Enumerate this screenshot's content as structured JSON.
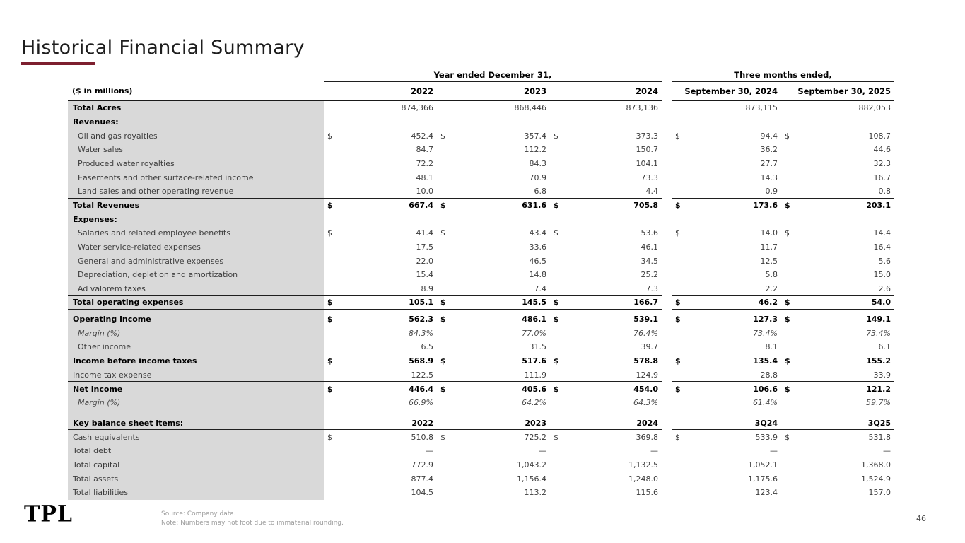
{
  "slide": {
    "title": "Historical Financial Summary",
    "accent_color": "#7d1f2f",
    "label_band_color": "#d9d9d9",
    "logo_text": "TPL",
    "page_number": "46",
    "footnotes": [
      "Source: Company data.",
      "Note: Numbers may not foot due to immaterial rounding."
    ]
  },
  "table": {
    "units_label": "($ in millions)",
    "group_headers": [
      "Year ended December 31,",
      "Three months ended,"
    ],
    "columns": [
      "2022",
      "2023",
      "2024",
      "September 30, 2024",
      "September 30, 2025"
    ],
    "rows": [
      {
        "name": "row-total-acres",
        "label": "Total Acres",
        "style": "lb",
        "values": [
          "874,366",
          "868,446",
          "873,136",
          "873,115",
          "882,053"
        ]
      },
      {
        "name": "row-revenues-header",
        "label": "Revenues:",
        "style": "lb"
      },
      {
        "name": "row-oil-gas-royalties",
        "label": "Oil and gas royalties",
        "style": "ind",
        "dollar": true,
        "values": [
          "452.4",
          "357.4",
          "373.3",
          "94.4",
          "108.7"
        ]
      },
      {
        "name": "row-water-sales",
        "label": "Water sales",
        "style": "ind",
        "values": [
          "84.7",
          "112.2",
          "150.7",
          "36.2",
          "44.6"
        ]
      },
      {
        "name": "row-produced-water-royalties",
        "label": "Produced water royalties",
        "style": "ind",
        "values": [
          "72.2",
          "84.3",
          "104.1",
          "27.7",
          "32.3"
        ]
      },
      {
        "name": "row-easements-income",
        "label": "Easements and other surface-related income",
        "style": "ind",
        "values": [
          "48.1",
          "70.9",
          "73.3",
          "14.3",
          "16.7"
        ]
      },
      {
        "name": "row-land-sales",
        "label": "Land sales and other operating revenue",
        "style": "ind",
        "values": [
          "10.0",
          "6.8",
          "4.4",
          "0.9",
          "0.8"
        ],
        "border_bottom": true
      },
      {
        "name": "row-total-revenues",
        "label": "Total Revenues",
        "style": "lb vb",
        "dollar": true,
        "values": [
          "667.4",
          "631.6",
          "705.8",
          "173.6",
          "203.1"
        ]
      },
      {
        "name": "row-expenses-header",
        "label": "Expenses:",
        "style": "lb"
      },
      {
        "name": "row-salaries-benefits",
        "label": "Salaries and related employee benefits",
        "style": "ind",
        "dollar": true,
        "values": [
          "41.4",
          "43.4",
          "53.6",
          "14.0",
          "14.4"
        ]
      },
      {
        "name": "row-water-service-expenses",
        "label": "Water service-related expenses",
        "style": "ind",
        "values": [
          "17.5",
          "33.6",
          "46.1",
          "11.7",
          "16.4"
        ]
      },
      {
        "name": "row-general-admin-expenses",
        "label": "General and administrative expenses",
        "style": "ind",
        "values": [
          "22.0",
          "46.5",
          "34.5",
          "12.5",
          "5.6"
        ]
      },
      {
        "name": "row-depreciation-depletion-amortization",
        "label": "Depreciation, depletion and amortization",
        "style": "ind",
        "values": [
          "15.4",
          "14.8",
          "25.2",
          "5.8",
          "15.0"
        ]
      },
      {
        "name": "row-ad-valorem-taxes",
        "label": "Ad valorem taxes",
        "style": "ind",
        "values": [
          "8.9",
          "7.4",
          "7.3",
          "2.2",
          "2.6"
        ],
        "border_bottom": true
      },
      {
        "name": "row-total-operating-expenses",
        "label": "Total operating expenses",
        "style": "lb vb",
        "dollar": true,
        "values": [
          "105.1",
          "145.5",
          "166.7",
          "46.2",
          "54.0"
        ],
        "border_bottom": true,
        "space_after": 4
      },
      {
        "name": "row-operating-income",
        "label": "Operating income",
        "style": "lb vb",
        "dollar": true,
        "values": [
          "562.3",
          "486.1",
          "539.1",
          "127.3",
          "149.1"
        ]
      },
      {
        "name": "row-operating-margin",
        "label": "Margin (%)",
        "style": "ind ital",
        "values": [
          "84.3%",
          "77.0%",
          "76.4%",
          "73.4%",
          "73.4%"
        ]
      },
      {
        "name": "row-other-income",
        "label": "Other income",
        "style": "ind",
        "values": [
          "6.5",
          "31.5",
          "39.7",
          "8.1",
          "6.1"
        ],
        "border_bottom": true
      },
      {
        "name": "row-income-before-income-taxes",
        "label": "Income before income taxes",
        "style": "lb vb",
        "dollar": true,
        "values": [
          "568.9",
          "517.6",
          "578.8",
          "135.4",
          "155.2"
        ],
        "border_bottom": true
      },
      {
        "name": "row-income-tax-expense",
        "label": "Income tax expense",
        "style": "",
        "values": [
          "122.5",
          "111.9",
          "124.9",
          "28.8",
          "33.9"
        ],
        "border_bottom": true
      },
      {
        "name": "row-net-income",
        "label": "Net income",
        "style": "lb vb",
        "dollar": true,
        "values": [
          "446.4",
          "405.6",
          "454.0",
          "106.6",
          "121.2"
        ]
      },
      {
        "name": "row-net-income-margin",
        "label": "Margin (%)",
        "style": "ind ital",
        "values": [
          "66.9%",
          "64.2%",
          "64.3%",
          "61.4%",
          "59.7%"
        ],
        "space_after": 9
      },
      {
        "name": "row-balance-sheet-header",
        "label": "Key balance sheet items:",
        "style": "lb vb",
        "values": [
          "2022",
          "2023",
          "2024",
          "3Q24",
          "3Q25"
        ],
        "border_bottom": true
      },
      {
        "name": "row-cash-equivalents",
        "label": "Cash equivalents",
        "style": "",
        "dollar": true,
        "values": [
          "510.8",
          "725.2",
          "369.8",
          "533.9",
          "531.8"
        ]
      },
      {
        "name": "row-total-debt",
        "label": "Total debt",
        "style": "",
        "values": [
          "—",
          "—",
          "—",
          "—",
          "—"
        ]
      },
      {
        "name": "row-total-capital",
        "label": "Total capital",
        "style": "",
        "values": [
          "772.9",
          "1,043.2",
          "1,132.5",
          "1,052.1",
          "1,368.0"
        ]
      },
      {
        "name": "row-total-assets",
        "label": "Total assets",
        "style": "",
        "values": [
          "877.4",
          "1,156.4",
          "1,248.0",
          "1,175.6",
          "1,524.9"
        ]
      },
      {
        "name": "row-total-liabilities",
        "label": "Total liabilities",
        "style": "",
        "values": [
          "104.5",
          "113.2",
          "115.6",
          "123.4",
          "157.0"
        ]
      }
    ]
  }
}
